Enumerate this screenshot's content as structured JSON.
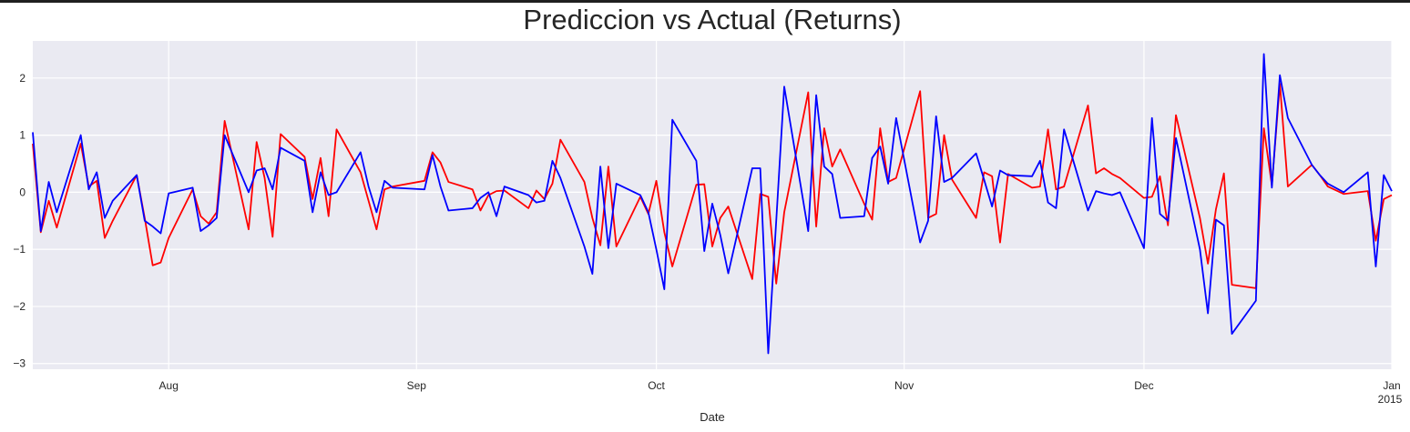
{
  "chart_data": {
    "type": "line",
    "title": "Prediccion vs Actual (Returns)",
    "xlabel": "Date",
    "ylabel": "",
    "x_start": "2014-07-15",
    "x_end": "2015-01-01",
    "xlim": [
      "2014-07-15",
      "2015-01-01"
    ],
    "ylim": [
      -3.1,
      2.65
    ],
    "yticks": [
      -3,
      -2,
      -1,
      0,
      1,
      2
    ],
    "xticks": [
      {
        "date": "2014-08-01",
        "label": "Aug",
        "sublabel": ""
      },
      {
        "date": "2014-09-01",
        "label": "Sep",
        "sublabel": ""
      },
      {
        "date": "2014-10-01",
        "label": "Oct",
        "sublabel": ""
      },
      {
        "date": "2014-11-01",
        "label": "Nov",
        "sublabel": ""
      },
      {
        "date": "2014-12-01",
        "label": "Dec",
        "sublabel": ""
      },
      {
        "date": "2015-01-01",
        "label": "Jan",
        "sublabel": "2015"
      }
    ],
    "grid": true,
    "colors": {
      "background": "#eaeaf2",
      "grid": "#ffffff",
      "prediction": "#ff0000",
      "actual": "#0000ff"
    },
    "series": [
      {
        "color": "#ff0000",
        "points": [
          [
            "2014-07-15",
            0.85
          ],
          [
            "2014-07-16",
            -0.7
          ],
          [
            "2014-07-17",
            -0.15
          ],
          [
            "2014-07-18",
            -0.62
          ],
          [
            "2014-07-21",
            0.85
          ],
          [
            "2014-07-22",
            0.1
          ],
          [
            "2014-07-23",
            0.2
          ],
          [
            "2014-07-24",
            -0.8
          ],
          [
            "2014-07-25",
            -0.5
          ],
          [
            "2014-07-28",
            0.3
          ],
          [
            "2014-07-29",
            -0.45
          ],
          [
            "2014-07-30",
            -1.28
          ],
          [
            "2014-07-31",
            -1.23
          ],
          [
            "2014-08-01",
            -0.8
          ],
          [
            "2014-08-04",
            0.05
          ],
          [
            "2014-08-05",
            -0.42
          ],
          [
            "2014-08-06",
            -0.55
          ],
          [
            "2014-08-07",
            -0.35
          ],
          [
            "2014-08-08",
            1.25
          ],
          [
            "2014-08-11",
            -0.65
          ],
          [
            "2014-08-12",
            0.88
          ],
          [
            "2014-08-13",
            0.25
          ],
          [
            "2014-08-14",
            -0.78
          ],
          [
            "2014-08-15",
            1.02
          ],
          [
            "2014-08-18",
            0.62
          ],
          [
            "2014-08-19",
            -0.12
          ],
          [
            "2014-08-20",
            0.6
          ],
          [
            "2014-08-21",
            -0.42
          ],
          [
            "2014-08-22",
            1.1
          ],
          [
            "2014-08-25",
            0.35
          ],
          [
            "2014-08-26",
            -0.15
          ],
          [
            "2014-08-27",
            -0.65
          ],
          [
            "2014-08-28",
            0.05
          ],
          [
            "2014-08-29",
            0.1
          ],
          [
            "2014-09-02",
            0.2
          ],
          [
            "2014-09-03",
            0.7
          ],
          [
            "2014-09-04",
            0.52
          ],
          [
            "2014-09-05",
            0.18
          ],
          [
            "2014-09-08",
            0.05
          ],
          [
            "2014-09-09",
            -0.32
          ],
          [
            "2014-09-10",
            -0.05
          ],
          [
            "2014-09-11",
            0.02
          ],
          [
            "2014-09-12",
            0.03
          ],
          [
            "2014-09-15",
            -0.28
          ],
          [
            "2014-09-16",
            0.03
          ],
          [
            "2014-09-17",
            -0.12
          ],
          [
            "2014-09-18",
            0.15
          ],
          [
            "2014-09-19",
            0.92
          ],
          [
            "2014-09-22",
            0.18
          ],
          [
            "2014-09-23",
            -0.45
          ],
          [
            "2014-09-24",
            -0.93
          ],
          [
            "2014-09-25",
            0.45
          ],
          [
            "2014-09-26",
            -0.95
          ],
          [
            "2014-09-29",
            -0.08
          ],
          [
            "2014-09-30",
            -0.38
          ],
          [
            "2014-10-01",
            0.2
          ],
          [
            "2014-10-02",
            -0.7
          ],
          [
            "2014-10-03",
            -1.3
          ],
          [
            "2014-10-06",
            0.13
          ],
          [
            "2014-10-07",
            0.14
          ],
          [
            "2014-10-08",
            -0.95
          ],
          [
            "2014-10-09",
            -0.45
          ],
          [
            "2014-10-10",
            -0.25
          ],
          [
            "2014-10-13",
            -1.52
          ],
          [
            "2014-10-14",
            -0.03
          ],
          [
            "2014-10-15",
            -0.08
          ],
          [
            "2014-10-16",
            -1.6
          ],
          [
            "2014-10-17",
            -0.35
          ],
          [
            "2014-10-20",
            1.75
          ],
          [
            "2014-10-21",
            -0.6
          ],
          [
            "2014-10-22",
            1.12
          ],
          [
            "2014-10-23",
            0.45
          ],
          [
            "2014-10-24",
            0.75
          ],
          [
            "2014-10-27",
            -0.2
          ],
          [
            "2014-10-28",
            -0.48
          ],
          [
            "2014-10-29",
            1.12
          ],
          [
            "2014-10-30",
            0.18
          ],
          [
            "2014-10-31",
            0.25
          ],
          [
            "2014-11-03",
            1.77
          ],
          [
            "2014-11-04",
            -0.45
          ],
          [
            "2014-11-05",
            -0.38
          ],
          [
            "2014-11-06",
            1.0
          ],
          [
            "2014-11-07",
            0.22
          ],
          [
            "2014-11-10",
            -0.45
          ],
          [
            "2014-11-11",
            0.35
          ],
          [
            "2014-11-12",
            0.28
          ],
          [
            "2014-11-13",
            -0.88
          ],
          [
            "2014-11-14",
            0.32
          ],
          [
            "2014-11-17",
            0.08
          ],
          [
            "2014-11-18",
            0.1
          ],
          [
            "2014-11-19",
            1.1
          ],
          [
            "2014-11-20",
            0.05
          ],
          [
            "2014-11-21",
            0.1
          ],
          [
            "2014-11-24",
            1.52
          ],
          [
            "2014-11-25",
            0.33
          ],
          [
            "2014-11-26",
            0.42
          ],
          [
            "2014-11-27",
            0.32
          ],
          [
            "2014-11-28",
            0.25
          ],
          [
            "2014-12-01",
            -0.1
          ],
          [
            "2014-12-02",
            -0.08
          ],
          [
            "2014-12-03",
            0.28
          ],
          [
            "2014-12-04",
            -0.58
          ],
          [
            "2014-12-05",
            1.35
          ],
          [
            "2014-12-08",
            -0.45
          ],
          [
            "2014-12-09",
            -1.25
          ],
          [
            "2014-12-10",
            -0.3
          ],
          [
            "2014-12-11",
            0.33
          ],
          [
            "2014-12-12",
            -1.62
          ],
          [
            "2014-12-15",
            -1.68
          ],
          [
            "2014-12-16",
            1.12
          ],
          [
            "2014-12-17",
            0.12
          ],
          [
            "2014-12-18",
            1.9
          ],
          [
            "2014-12-19",
            0.1
          ],
          [
            "2014-12-22",
            0.48
          ],
          [
            "2014-12-23",
            0.3
          ],
          [
            "2014-12-24",
            0.1
          ],
          [
            "2014-12-26",
            -0.03
          ],
          [
            "2014-12-29",
            0.02
          ],
          [
            "2014-12-30",
            -0.85
          ],
          [
            "2014-12-31",
            -0.12
          ],
          [
            "2015-01-01",
            -0.05
          ]
        ]
      },
      {
        "color": "#0000ff",
        "points": [
          [
            "2014-07-15",
            1.05
          ],
          [
            "2014-07-16",
            -0.68
          ],
          [
            "2014-07-17",
            0.18
          ],
          [
            "2014-07-18",
            -0.35
          ],
          [
            "2014-07-21",
            1.0
          ],
          [
            "2014-07-22",
            0.05
          ],
          [
            "2014-07-23",
            0.35
          ],
          [
            "2014-07-24",
            -0.45
          ],
          [
            "2014-07-25",
            -0.15
          ],
          [
            "2014-07-28",
            0.3
          ],
          [
            "2014-07-29",
            -0.5
          ],
          [
            "2014-07-30",
            -0.6
          ],
          [
            "2014-07-31",
            -0.72
          ],
          [
            "2014-08-01",
            -0.02
          ],
          [
            "2014-08-04",
            0.08
          ],
          [
            "2014-08-05",
            -0.68
          ],
          [
            "2014-08-06",
            -0.58
          ],
          [
            "2014-08-07",
            -0.45
          ],
          [
            "2014-08-08",
            1.0
          ],
          [
            "2014-08-11",
            0.0
          ],
          [
            "2014-08-12",
            0.38
          ],
          [
            "2014-08-13",
            0.42
          ],
          [
            "2014-08-14",
            0.05
          ],
          [
            "2014-08-15",
            0.78
          ],
          [
            "2014-08-18",
            0.55
          ],
          [
            "2014-08-19",
            -0.35
          ],
          [
            "2014-08-20",
            0.35
          ],
          [
            "2014-08-21",
            -0.05
          ],
          [
            "2014-08-22",
            0.0
          ],
          [
            "2014-08-25",
            0.7
          ],
          [
            "2014-08-26",
            0.1
          ],
          [
            "2014-08-27",
            -0.35
          ],
          [
            "2014-08-28",
            0.2
          ],
          [
            "2014-08-29",
            0.08
          ],
          [
            "2014-09-02",
            0.05
          ],
          [
            "2014-09-03",
            0.65
          ],
          [
            "2014-09-04",
            0.1
          ],
          [
            "2014-09-05",
            -0.32
          ],
          [
            "2014-09-08",
            -0.28
          ],
          [
            "2014-09-09",
            -0.1
          ],
          [
            "2014-09-10",
            0.0
          ],
          [
            "2014-09-11",
            -0.42
          ],
          [
            "2014-09-12",
            0.1
          ],
          [
            "2014-09-15",
            -0.05
          ],
          [
            "2014-09-16",
            -0.18
          ],
          [
            "2014-09-17",
            -0.15
          ],
          [
            "2014-09-18",
            0.55
          ],
          [
            "2014-09-19",
            0.25
          ],
          [
            "2014-09-22",
            -0.95
          ],
          [
            "2014-09-23",
            -1.43
          ],
          [
            "2014-09-24",
            0.45
          ],
          [
            "2014-09-25",
            -0.98
          ],
          [
            "2014-09-26",
            0.15
          ],
          [
            "2014-09-29",
            -0.05
          ],
          [
            "2014-09-30",
            -0.35
          ],
          [
            "2014-10-01",
            -1.0
          ],
          [
            "2014-10-02",
            -1.7
          ],
          [
            "2014-10-03",
            1.27
          ],
          [
            "2014-10-06",
            0.55
          ],
          [
            "2014-10-07",
            -1.03
          ],
          [
            "2014-10-08",
            -0.2
          ],
          [
            "2014-10-09",
            -0.75
          ],
          [
            "2014-10-10",
            -1.42
          ],
          [
            "2014-10-13",
            0.42
          ],
          [
            "2014-10-14",
            0.42
          ],
          [
            "2014-10-15",
            -2.82
          ],
          [
            "2014-10-16",
            -0.5
          ],
          [
            "2014-10-17",
            1.85
          ],
          [
            "2014-10-20",
            -0.68
          ],
          [
            "2014-10-21",
            1.7
          ],
          [
            "2014-10-22",
            0.45
          ],
          [
            "2014-10-23",
            0.32
          ],
          [
            "2014-10-24",
            -0.45
          ],
          [
            "2014-10-27",
            -0.42
          ],
          [
            "2014-10-28",
            0.6
          ],
          [
            "2014-10-29",
            0.8
          ],
          [
            "2014-10-30",
            0.15
          ],
          [
            "2014-10-31",
            1.3
          ],
          [
            "2014-11-03",
            -0.88
          ],
          [
            "2014-11-04",
            -0.5
          ],
          [
            "2014-11-05",
            1.33
          ],
          [
            "2014-11-06",
            0.18
          ],
          [
            "2014-11-07",
            0.25
          ],
          [
            "2014-11-10",
            0.68
          ],
          [
            "2014-11-11",
            0.22
          ],
          [
            "2014-11-12",
            -0.25
          ],
          [
            "2014-11-13",
            0.38
          ],
          [
            "2014-11-14",
            0.3
          ],
          [
            "2014-11-17",
            0.28
          ],
          [
            "2014-11-18",
            0.55
          ],
          [
            "2014-11-19",
            -0.18
          ],
          [
            "2014-11-20",
            -0.28
          ],
          [
            "2014-11-21",
            1.1
          ],
          [
            "2014-11-24",
            -0.32
          ],
          [
            "2014-11-25",
            0.02
          ],
          [
            "2014-11-26",
            -0.02
          ],
          [
            "2014-11-27",
            -0.05
          ],
          [
            "2014-11-28",
            0.0
          ],
          [
            "2014-12-01",
            -0.98
          ],
          [
            "2014-12-02",
            1.3
          ],
          [
            "2014-12-03",
            -0.38
          ],
          [
            "2014-12-04",
            -0.5
          ],
          [
            "2014-12-05",
            0.95
          ],
          [
            "2014-12-08",
            -1.0
          ],
          [
            "2014-12-09",
            -2.12
          ],
          [
            "2014-12-10",
            -0.48
          ],
          [
            "2014-12-11",
            -0.58
          ],
          [
            "2014-12-12",
            -2.48
          ],
          [
            "2014-12-15",
            -1.9
          ],
          [
            "2014-12-16",
            2.42
          ],
          [
            "2014-12-17",
            0.08
          ],
          [
            "2014-12-18",
            2.05
          ],
          [
            "2014-12-19",
            1.3
          ],
          [
            "2014-12-22",
            0.48
          ],
          [
            "2014-12-23",
            0.3
          ],
          [
            "2014-12-24",
            0.15
          ],
          [
            "2014-12-26",
            0.0
          ],
          [
            "2014-12-29",
            0.35
          ],
          [
            "2014-12-30",
            -1.3
          ],
          [
            "2014-12-31",
            0.3
          ],
          [
            "2015-01-01",
            0.02
          ]
        ]
      }
    ]
  }
}
